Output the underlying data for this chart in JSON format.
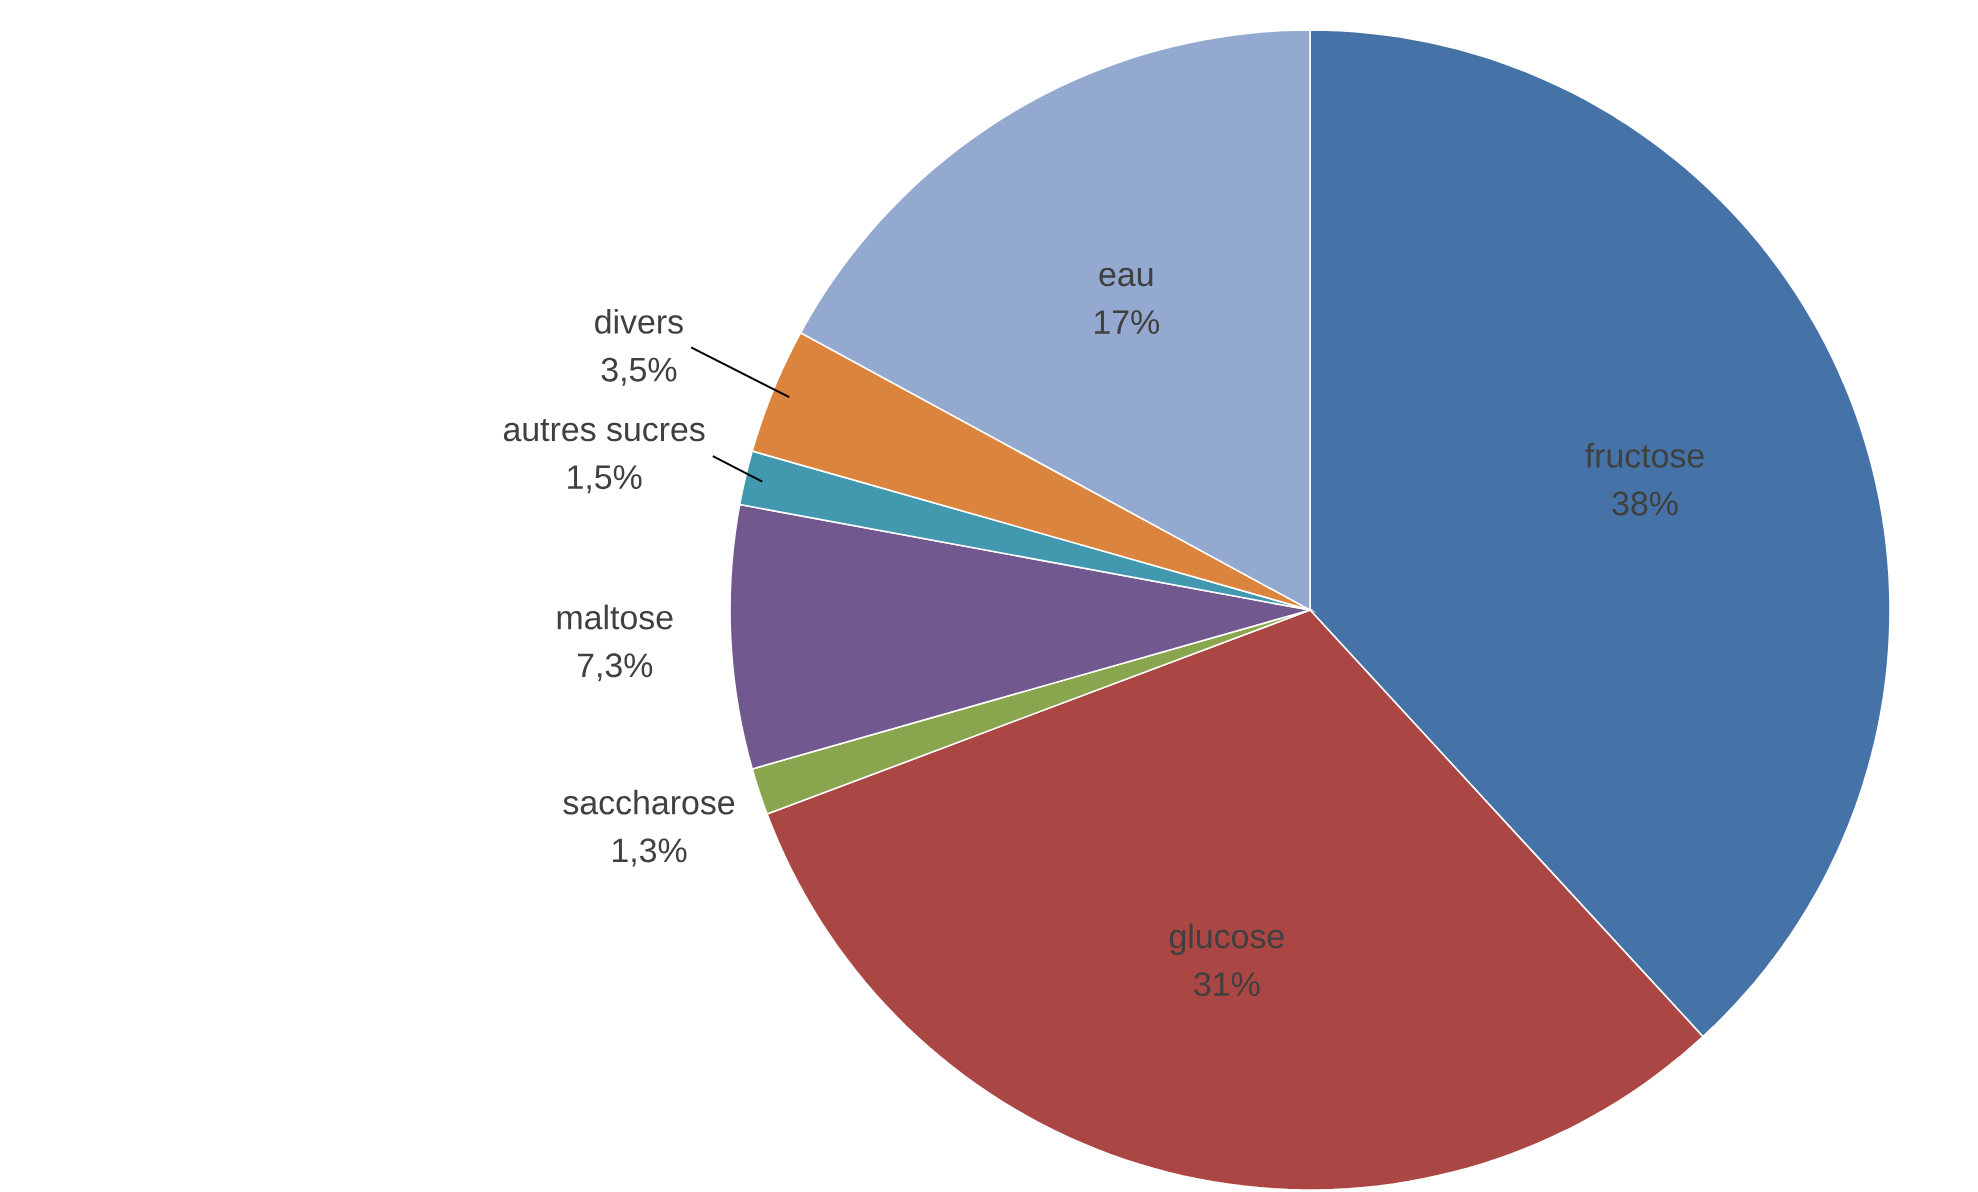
{
  "chart_data": {
    "type": "pie",
    "categories": [
      "fructose",
      "glucose",
      "saccharose",
      "maltose",
      "autres sucres",
      "divers",
      "eau"
    ],
    "values": [
      38,
      31,
      1.3,
      7.3,
      1.5,
      3.5,
      17
    ],
    "value_labels": [
      "38%",
      "31%",
      "1,3%",
      "7,3%",
      "1,5%",
      "3,5%",
      "17%"
    ],
    "colors": [
      "#4572a7",
      "#aa4643",
      "#89a54e",
      "#71588f",
      "#4198af",
      "#db843d",
      "#93a9cf"
    ]
  }
}
